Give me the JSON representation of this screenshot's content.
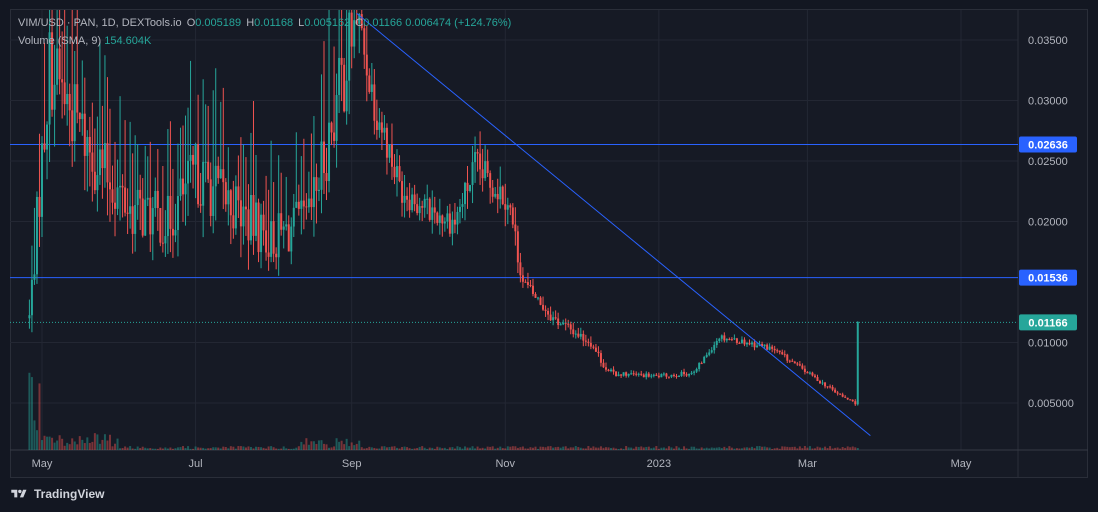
{
  "legend": {
    "symbol": "VIM/USD · PAN, 1D, DEXTools.io",
    "open_label": "O",
    "open_value": "0.005189",
    "high_label": "H",
    "high_value": "0.01168",
    "low_label": "L",
    "low_value": "0.005162",
    "close_label": "C",
    "close_value": "0.01166",
    "change": "0.006474 (+124.76%)",
    "volume_label": "Volume (SMA, 9)",
    "volume_value": "154.604K"
  },
  "branding": {
    "name": "TradingView"
  },
  "colors": {
    "background": "#131722",
    "grid": "#232733",
    "up": "#26a69a",
    "down": "#ef5350",
    "trendline": "#2962ff",
    "price_label": "#2962ff",
    "last_price": "#26a69a"
  },
  "chart_data": {
    "type": "candlestick",
    "title": "VIM/USD · PAN, 1D, DEXTools.io",
    "x_ticks": [
      "May",
      "Jul",
      "Sep",
      "Nov",
      "2023",
      "Mar",
      "May"
    ],
    "y_ticks": [
      "0.03500",
      "0.03000",
      "0.02500",
      "0.02000",
      "0.01000",
      "0.005000"
    ],
    "y_range": [
      0.0015,
      0.0375
    ],
    "grid": true,
    "price_levels": [
      {
        "label": "0.02636",
        "value": 0.02636
      },
      {
        "label": "0.01536",
        "value": 0.01536
      }
    ],
    "last_price": {
      "label": "0.01166",
      "value": 0.01166
    },
    "trendline": {
      "from": {
        "date": "2022-09-03",
        "price": 0.0372
      },
      "to": {
        "date": "2023-03-26",
        "price": 0.0023
      }
    },
    "price_path": [
      {
        "date": "2022-04-26",
        "price": 0.012
      },
      {
        "date": "2022-05-04",
        "price": 0.033
      },
      {
        "date": "2022-05-20",
        "price": 0.026
      },
      {
        "date": "2022-06-05",
        "price": 0.021
      },
      {
        "date": "2022-06-20",
        "price": 0.02
      },
      {
        "date": "2022-07-01",
        "price": 0.024
      },
      {
        "date": "2022-07-15",
        "price": 0.0215
      },
      {
        "date": "2022-07-31",
        "price": 0.0185
      },
      {
        "date": "2022-08-15",
        "price": 0.02
      },
      {
        "date": "2022-08-24",
        "price": 0.028
      },
      {
        "date": "2022-09-03",
        "price": 0.037
      },
      {
        "date": "2022-09-10",
        "price": 0.03
      },
      {
        "date": "2022-09-20",
        "price": 0.023
      },
      {
        "date": "2022-10-01",
        "price": 0.021
      },
      {
        "date": "2022-10-12",
        "price": 0.02
      },
      {
        "date": "2022-10-20",
        "price": 0.0245
      },
      {
        "date": "2022-11-02",
        "price": 0.022
      },
      {
        "date": "2022-11-08",
        "price": 0.015
      },
      {
        "date": "2022-11-20",
        "price": 0.012
      },
      {
        "date": "2022-12-05",
        "price": 0.01
      },
      {
        "date": "2022-12-12",
        "price": 0.0075
      },
      {
        "date": "2022-12-31",
        "price": 0.0072
      },
      {
        "date": "2023-01-15",
        "price": 0.0075
      },
      {
        "date": "2023-01-25",
        "price": 0.0105
      },
      {
        "date": "2023-02-05",
        "price": 0.01
      },
      {
        "date": "2023-02-15",
        "price": 0.0095
      },
      {
        "date": "2023-03-01",
        "price": 0.0075
      },
      {
        "date": "2023-03-15",
        "price": 0.0055
      },
      {
        "date": "2023-03-20",
        "price": 0.005
      },
      {
        "date": "2023-03-22",
        "price": 0.0117
      }
    ]
  }
}
